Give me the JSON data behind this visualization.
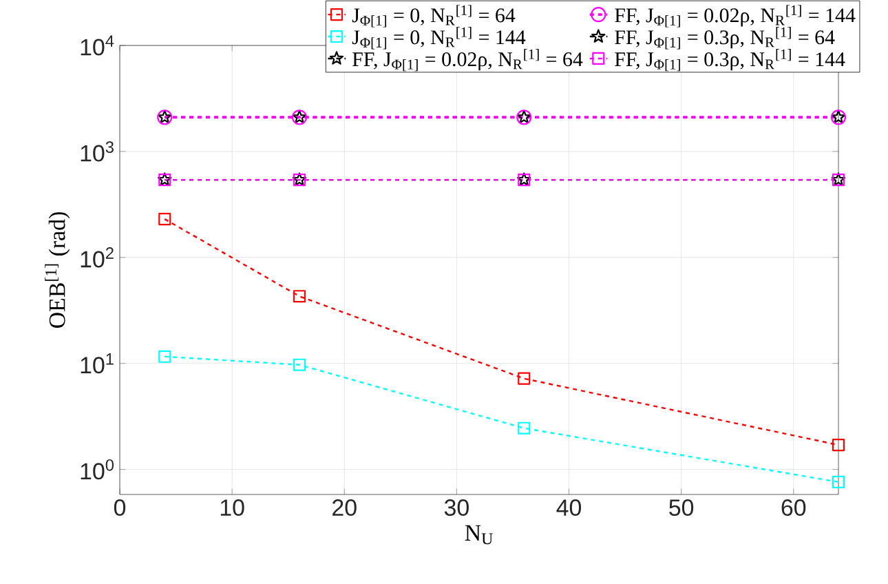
{
  "chart_data": {
    "type": "line",
    "xlabel": "N$_{U}$",
    "ylabel": "OEB$^{[1]}$ (rad)",
    "x": [
      4,
      16,
      36,
      64
    ],
    "series": [
      {
        "name": "J$_{Φ[1]}$ = 0, N$_{R}$$^{[1]}$ = 64",
        "color": "#ff0000",
        "marker": "square",
        "line_style": "dashed",
        "values": [
          230,
          43,
          7.2,
          1.7
        ]
      },
      {
        "name": "J$_{Φ[1]}$ = 0, N$_{R}$$^{[1]}$ = 144",
        "color": "#00ffff",
        "marker": "square",
        "line_style": "dashed",
        "values": [
          11.6,
          9.7,
          2.45,
          0.76
        ]
      },
      {
        "name": "FF, J$_{Φ[1]}$ = 0.02ρ, N$_{R}$$^{[1]}$ = 64",
        "color": "#000000",
        "marker": "star",
        "line_style": "dashed",
        "values": [
          2100,
          2100,
          2100,
          2100
        ]
      },
      {
        "name": "FF, J$_{Φ[1]}$ = 0.02ρ, N$_{R}$$^{[1]}$ = 144",
        "color": "#ff00ff",
        "marker": "circle",
        "line_style": "dashed",
        "values": [
          2100,
          2100,
          2100,
          2100
        ]
      },
      {
        "name": "FF, J$_{Φ[1]}$ = 0.3ρ, N$_{R}$$^{[1]}$ = 64",
        "color": "#000000",
        "marker": "star",
        "line_style": "dashed",
        "values": [
          540,
          540,
          540,
          540
        ]
      },
      {
        "name": "FF, J$_{Φ[1]}$ = 0.3ρ, N$_{R}$$^{[1]}$ = 144",
        "color": "#ff00ff",
        "marker": "square",
        "line_style": "dashed",
        "values": [
          540,
          540,
          540,
          540
        ]
      }
    ],
    "log": "y",
    "grid": true,
    "legend": "top",
    "xlim": [
      0,
      64
    ],
    "ylim": [
      0.58,
      10000
    ],
    "xticks": [
      0,
      10,
      20,
      30,
      40,
      50,
      60
    ],
    "yticks": [
      {
        "value": 1,
        "label": "10$^{0}$"
      },
      {
        "value": 10,
        "label": "10$^{1}$"
      },
      {
        "value": 100,
        "label": "10$^{2}$"
      },
      {
        "value": 1000,
        "label": "10$^{3}$"
      },
      {
        "value": 10000,
        "label": "10$^{4}$"
      }
    ]
  }
}
